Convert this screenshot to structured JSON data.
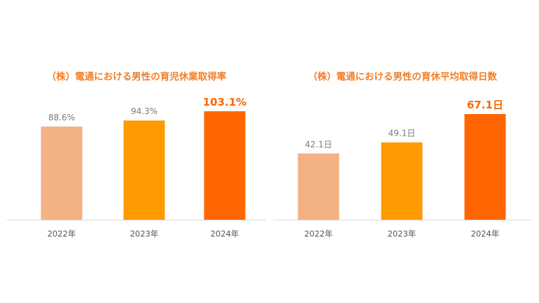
{
  "chart_data": [
    {
      "type": "bar",
      "title": "（株）電通における男性の育児休業取得率",
      "categories": [
        "2022年",
        "2023年",
        "2024年"
      ],
      "values": [
        88.6,
        94.3,
        103.1
      ],
      "value_labels": [
        "88.6%",
        "94.3%",
        "103.1%"
      ],
      "colors": [
        "#f4b183",
        "#ff9a00",
        "#ff6600"
      ],
      "highlight_index": 2,
      "ylim": [
        0,
        103.1
      ],
      "grid": false
    },
    {
      "type": "bar",
      "title": "（株）電通における男性の育休平均取得日数",
      "categories": [
        "2022年",
        "2023年",
        "2024年"
      ],
      "values": [
        42.1,
        49.1,
        67.1
      ],
      "value_labels": [
        "42.1日",
        "49.1日",
        "67.1日"
      ],
      "colors": [
        "#f4b183",
        "#ff9a00",
        "#ff6600"
      ],
      "highlight_index": 2,
      "ylim": [
        0,
        67.1
      ],
      "grid": false
    }
  ]
}
